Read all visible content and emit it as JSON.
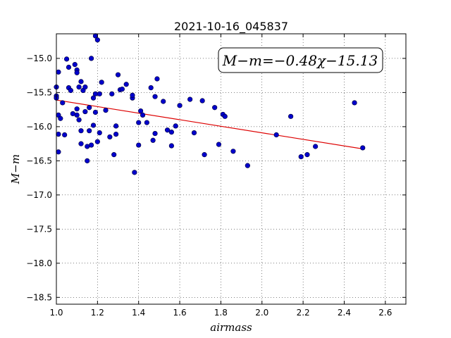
{
  "chart_data": {
    "type": "scatter",
    "title": "2021-10-16_045837",
    "xlabel": "airmass",
    "ylabel": "M−m",
    "xlim": [
      1.0,
      2.7
    ],
    "ylim": [
      -18.6,
      -14.64
    ],
    "y_inverted": false,
    "grid": true,
    "xticks": [
      "1.0",
      "1.2",
      "1.4",
      "1.6",
      "1.8",
      "2.0",
      "2.2",
      "2.4",
      "2.6"
    ],
    "yticks": [
      "−15.0",
      "−15.5",
      "−16.0",
      "−16.5",
      "−17.0",
      "−17.5",
      "−18.0",
      "−18.5"
    ],
    "xtick_values": [
      1.0,
      1.2,
      1.4,
      1.6,
      1.8,
      2.0,
      2.2,
      2.4,
      2.6
    ],
    "ytick_values": [
      -15.0,
      -15.5,
      -16.0,
      -16.5,
      -17.0,
      -17.5,
      -18.0,
      -18.5
    ],
    "annotation": "M−m=−0.48χ−15.13",
    "point_color": "#0000cc",
    "fit_color": "#dd0000",
    "fit_line": {
      "x": [
        1.0,
        2.49
      ],
      "y": [
        -15.61,
        -16.325
      ]
    },
    "points": [
      {
        "x": 1.0,
        "y": -15.42
      },
      {
        "x": 1.0,
        "y": -15.55
      },
      {
        "x": 1.0,
        "y": -15.58
      },
      {
        "x": 1.01,
        "y": -15.2
      },
      {
        "x": 1.01,
        "y": -15.83
      },
      {
        "x": 1.01,
        "y": -16.11
      },
      {
        "x": 1.01,
        "y": -16.37
      },
      {
        "x": 1.02,
        "y": -15.88
      },
      {
        "x": 1.03,
        "y": -15.65
      },
      {
        "x": 1.04,
        "y": -16.12
      },
      {
        "x": 1.05,
        "y": -15.01
      },
      {
        "x": 1.06,
        "y": -15.13
      },
      {
        "x": 1.06,
        "y": -15.43
      },
      {
        "x": 1.07,
        "y": -15.47
      },
      {
        "x": 1.08,
        "y": -15.81
      },
      {
        "x": 1.09,
        "y": -15.09
      },
      {
        "x": 1.1,
        "y": -15.17
      },
      {
        "x": 1.1,
        "y": -15.21
      },
      {
        "x": 1.1,
        "y": -15.74
      },
      {
        "x": 1.1,
        "y": -15.83
      },
      {
        "x": 1.11,
        "y": -15.9
      },
      {
        "x": 1.11,
        "y": -15.42
      },
      {
        "x": 1.12,
        "y": -15.34
      },
      {
        "x": 1.12,
        "y": -16.06
      },
      {
        "x": 1.12,
        "y": -16.25
      },
      {
        "x": 1.13,
        "y": -15.47
      },
      {
        "x": 1.14,
        "y": -15.78
      },
      {
        "x": 1.14,
        "y": -15.42
      },
      {
        "x": 1.15,
        "y": -16.29
      },
      {
        "x": 1.15,
        "y": -16.5
      },
      {
        "x": 1.16,
        "y": -15.72
      },
      {
        "x": 1.16,
        "y": -16.06
      },
      {
        "x": 1.17,
        "y": -15.0
      },
      {
        "x": 1.17,
        "y": -16.27
      },
      {
        "x": 1.18,
        "y": -15.58
      },
      {
        "x": 1.18,
        "y": -15.98
      },
      {
        "x": 1.19,
        "y": -15.52
      },
      {
        "x": 1.19,
        "y": -15.79
      },
      {
        "x": 1.19,
        "y": -14.67
      },
      {
        "x": 1.2,
        "y": -14.73
      },
      {
        "x": 1.2,
        "y": -16.22
      },
      {
        "x": 1.21,
        "y": -16.09
      },
      {
        "x": 1.21,
        "y": -15.52
      },
      {
        "x": 1.22,
        "y": -15.35
      },
      {
        "x": 1.24,
        "y": -15.76
      },
      {
        "x": 1.26,
        "y": -16.15
      },
      {
        "x": 1.27,
        "y": -15.52
      },
      {
        "x": 1.28,
        "y": -16.41
      },
      {
        "x": 1.29,
        "y": -15.99
      },
      {
        "x": 1.29,
        "y": -16.11
      },
      {
        "x": 1.3,
        "y": -15.24
      },
      {
        "x": 1.31,
        "y": -15.46
      },
      {
        "x": 1.32,
        "y": -15.45
      },
      {
        "x": 1.34,
        "y": -15.38
      },
      {
        "x": 1.37,
        "y": -15.58
      },
      {
        "x": 1.37,
        "y": -15.54
      },
      {
        "x": 1.38,
        "y": -16.67
      },
      {
        "x": 1.4,
        "y": -15.94
      },
      {
        "x": 1.4,
        "y": -16.27
      },
      {
        "x": 1.41,
        "y": -15.77
      },
      {
        "x": 1.42,
        "y": -15.83
      },
      {
        "x": 1.44,
        "y": -15.94
      },
      {
        "x": 1.46,
        "y": -15.43
      },
      {
        "x": 1.47,
        "y": -16.2
      },
      {
        "x": 1.48,
        "y": -16.1
      },
      {
        "x": 1.48,
        "y": -15.56
      },
      {
        "x": 1.49,
        "y": -15.3
      },
      {
        "x": 1.52,
        "y": -15.63
      },
      {
        "x": 1.54,
        "y": -16.05
      },
      {
        "x": 1.56,
        "y": -16.08
      },
      {
        "x": 1.56,
        "y": -16.28
      },
      {
        "x": 1.58,
        "y": -15.99
      },
      {
        "x": 1.6,
        "y": -15.69
      },
      {
        "x": 1.65,
        "y": -15.6
      },
      {
        "x": 1.67,
        "y": -16.09
      },
      {
        "x": 1.71,
        "y": -15.62
      },
      {
        "x": 1.72,
        "y": -16.41
      },
      {
        "x": 1.77,
        "y": -15.72
      },
      {
        "x": 1.79,
        "y": -16.26
      },
      {
        "x": 1.81,
        "y": -15.82
      },
      {
        "x": 1.82,
        "y": -15.85
      },
      {
        "x": 1.86,
        "y": -16.36
      },
      {
        "x": 1.93,
        "y": -16.57
      },
      {
        "x": 2.07,
        "y": -16.12
      },
      {
        "x": 2.14,
        "y": -15.85
      },
      {
        "x": 2.19,
        "y": -16.44
      },
      {
        "x": 2.22,
        "y": -16.41
      },
      {
        "x": 2.26,
        "y": -16.29
      },
      {
        "x": 2.45,
        "y": -15.65
      },
      {
        "x": 2.49,
        "y": -16.31
      }
    ]
  }
}
